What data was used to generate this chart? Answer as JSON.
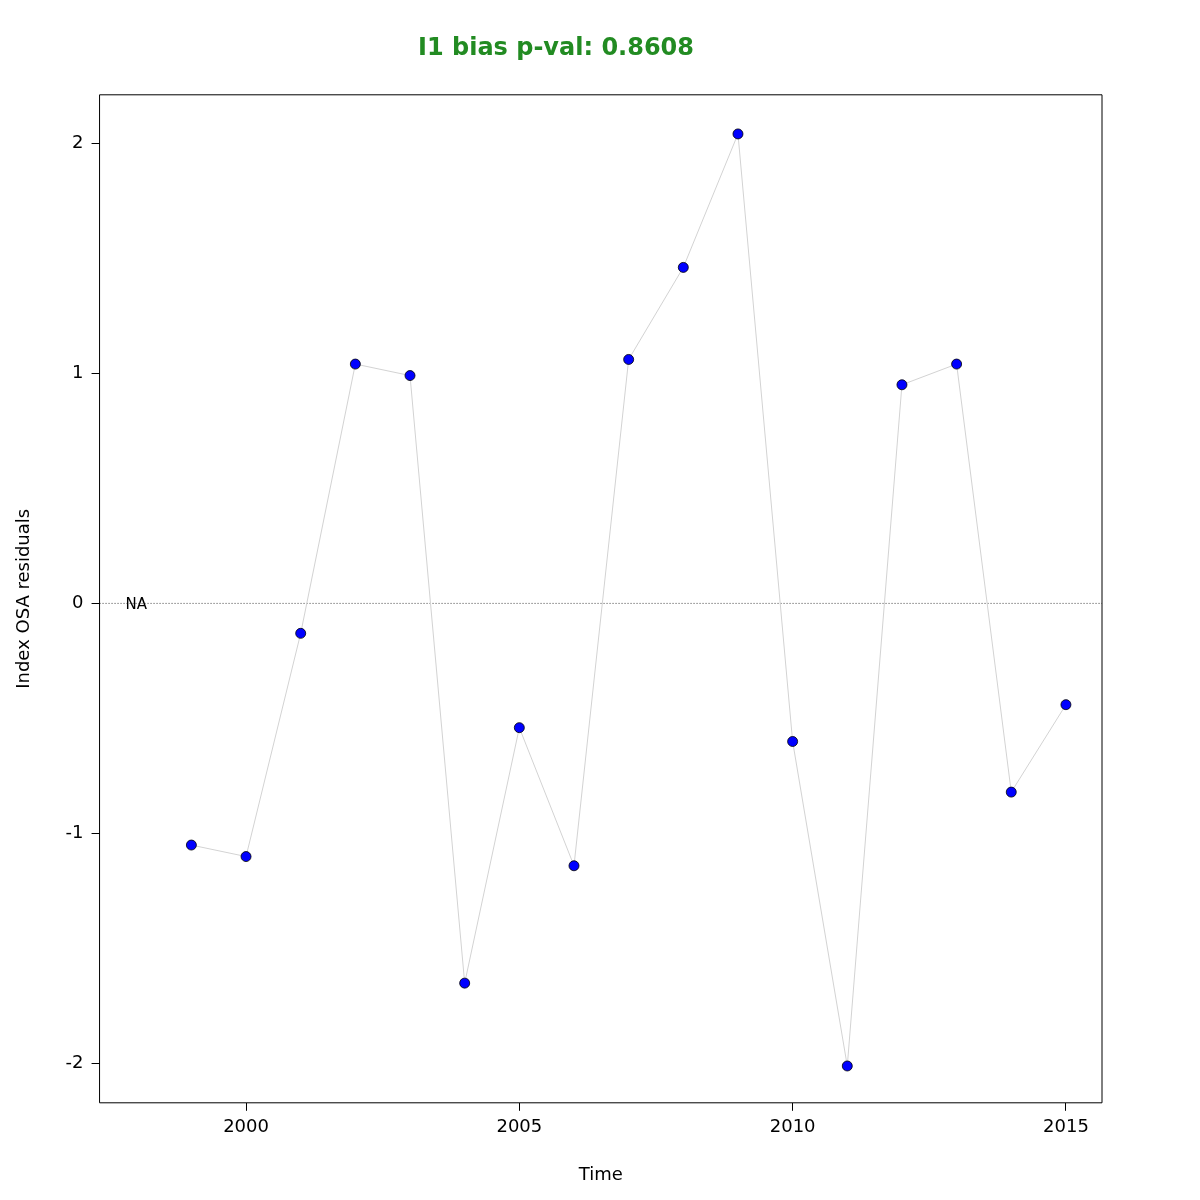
{
  "chart_data": {
    "type": "line",
    "title": "I1 bias p-val: 0.8608",
    "xlabel": "Time",
    "ylabel": "Index OSA residuals",
    "x": [
      1999,
      2000,
      2001,
      2002,
      2003,
      2004,
      2005,
      2006,
      2007,
      2008,
      2009,
      2010,
      2011,
      2012,
      2013,
      2014,
      2015
    ],
    "series": [
      {
        "color": "#0000ff",
        "values": [
          -1.05,
          -1.1,
          -0.13,
          1.04,
          0.99,
          -1.65,
          -0.54,
          -1.14,
          1.06,
          1.46,
          2.04,
          -0.6,
          -2.01,
          0.95,
          1.04,
          -0.82,
          -0.44
        ]
      }
    ],
    "xlim": [
      1997.32,
      2015.66
    ],
    "xticks": [
      2000,
      2005,
      2010,
      2015
    ],
    "ylim": [
      -2.17,
      2.21
    ],
    "yticks": [
      -2,
      -1,
      0,
      1,
      2
    ],
    "ref_lines": [
      {
        "axis": "y",
        "value": 0,
        "label": "NA",
        "line_style": "dotted"
      }
    ],
    "marker": "circle",
    "grid": false,
    "legend": false
  }
}
